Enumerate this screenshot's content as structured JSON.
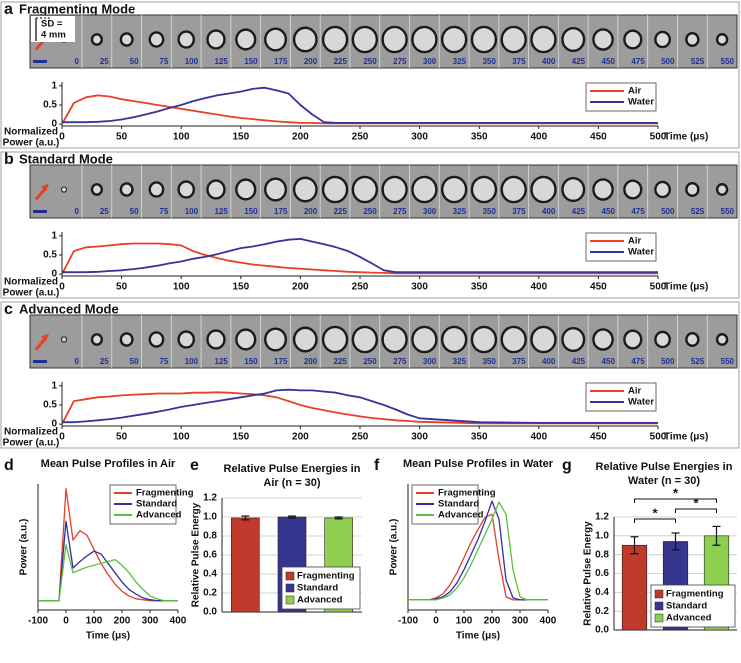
{
  "chart_data": [
    {
      "panel": "a",
      "type": "line",
      "title": "Fragmenting Mode",
      "scale_label": [
        "SD =",
        "4 mm"
      ],
      "frame_labels": [
        0,
        25,
        50,
        75,
        100,
        125,
        150,
        175,
        200,
        225,
        250,
        275,
        300,
        325,
        350,
        375,
        400,
        425,
        450,
        475,
        500,
        525,
        550
      ],
      "xlabel": "Time (μs)",
      "ylabel": [
        "Normalized",
        "Power (a.u.)"
      ],
      "legend": "upper right",
      "xlim": [
        0,
        500
      ],
      "xticks": [
        0,
        50,
        100,
        150,
        200,
        250,
        300,
        350,
        400,
        450,
        500
      ],
      "ylim": [
        -0.05,
        1.1
      ],
      "yticks": [
        0,
        0.5,
        1
      ],
      "x": [
        0,
        10,
        20,
        30,
        40,
        50,
        60,
        70,
        80,
        90,
        100,
        110,
        120,
        130,
        140,
        150,
        160,
        170,
        180,
        190,
        200,
        210,
        220,
        230,
        240,
        250,
        260,
        270,
        280,
        290,
        300,
        350,
        400,
        450,
        500
      ],
      "series": [
        {
          "name": "Air",
          "color": "#e8402b",
          "values": [
            0,
            0.55,
            0.7,
            0.75,
            0.72,
            0.65,
            0.6,
            0.55,
            0.5,
            0.45,
            0.4,
            0.35,
            0.3,
            0.25,
            0.2,
            0.16,
            0.13,
            0.1,
            0.07,
            0.05,
            0.03,
            0.03,
            0.02,
            0.02,
            0.02,
            0.02,
            0.02,
            0.02,
            0.02,
            0.02,
            0.02,
            0.02,
            0.02,
            0.02,
            0.02
          ]
        },
        {
          "name": "Water",
          "color": "#34349a",
          "values": [
            0.05,
            0.05,
            0.05,
            0.06,
            0.08,
            0.12,
            0.18,
            0.25,
            0.33,
            0.42,
            0.5,
            0.6,
            0.68,
            0.75,
            0.8,
            0.85,
            0.92,
            0.95,
            0.88,
            0.8,
            0.5,
            0.25,
            0.05,
            0.03,
            0.03,
            0.03,
            0.03,
            0.03,
            0.03,
            0.03,
            0.03,
            0.03,
            0.03,
            0.03,
            0.03
          ]
        }
      ]
    },
    {
      "panel": "b",
      "type": "line",
      "title": "Standard Mode",
      "frame_labels": [
        0,
        25,
        50,
        75,
        100,
        125,
        150,
        175,
        200,
        225,
        250,
        275,
        300,
        325,
        350,
        375,
        400,
        425,
        450,
        475,
        500,
        525,
        550
      ],
      "xlabel": "Time (μs)",
      "ylabel": [
        "Normalized",
        "Power (a.u.)"
      ],
      "legend": "upper right",
      "xlim": [
        0,
        500
      ],
      "xticks": [
        0,
        50,
        100,
        150,
        200,
        250,
        300,
        350,
        400,
        450,
        500
      ],
      "ylim": [
        -0.05,
        1.1
      ],
      "yticks": [
        0,
        0.5,
        1
      ],
      "x": [
        0,
        10,
        20,
        30,
        40,
        50,
        60,
        70,
        80,
        90,
        100,
        110,
        120,
        130,
        140,
        150,
        160,
        170,
        180,
        190,
        200,
        210,
        220,
        230,
        240,
        250,
        260,
        270,
        280,
        290,
        300,
        350,
        400,
        450,
        500
      ],
      "series": [
        {
          "name": "Air",
          "color": "#e8402b",
          "values": [
            0,
            0.6,
            0.7,
            0.72,
            0.75,
            0.78,
            0.8,
            0.8,
            0.8,
            0.78,
            0.75,
            0.6,
            0.5,
            0.42,
            0.35,
            0.3,
            0.25,
            0.22,
            0.19,
            0.16,
            0.14,
            0.12,
            0.1,
            0.08,
            0.06,
            0.05,
            0.04,
            0.03,
            0.02,
            0.02,
            0.02,
            0.02,
            0.02,
            0.02,
            0.02
          ]
        },
        {
          "name": "Water",
          "color": "#34349a",
          "values": [
            0.05,
            0.05,
            0.05,
            0.06,
            0.08,
            0.1,
            0.13,
            0.17,
            0.22,
            0.28,
            0.33,
            0.4,
            0.45,
            0.52,
            0.6,
            0.68,
            0.72,
            0.78,
            0.85,
            0.9,
            0.92,
            0.85,
            0.78,
            0.7,
            0.6,
            0.45,
            0.28,
            0.1,
            0.05,
            0.05,
            0.05,
            0.05,
            0.05,
            0.05,
            0.05
          ]
        }
      ]
    },
    {
      "panel": "c",
      "type": "line",
      "title": "Advanced Mode",
      "frame_labels": [
        0,
        25,
        50,
        75,
        100,
        125,
        150,
        175,
        200,
        225,
        250,
        275,
        300,
        325,
        350,
        375,
        400,
        425,
        450,
        475,
        500,
        525,
        550
      ],
      "xlabel": "Time (μs)",
      "ylabel": [
        "Normalized",
        "Power (a.u.)"
      ],
      "legend": "upper right",
      "xlim": [
        0,
        500
      ],
      "xticks": [
        0,
        50,
        100,
        150,
        200,
        250,
        300,
        350,
        400,
        450,
        500
      ],
      "ylim": [
        -0.05,
        1.1
      ],
      "yticks": [
        0,
        0.5,
        1
      ],
      "x": [
        0,
        10,
        20,
        30,
        40,
        50,
        60,
        70,
        80,
        90,
        100,
        110,
        120,
        130,
        140,
        150,
        160,
        170,
        180,
        190,
        200,
        210,
        220,
        230,
        240,
        250,
        260,
        270,
        280,
        290,
        300,
        350,
        400,
        450,
        500
      ],
      "series": [
        {
          "name": "Air",
          "color": "#e8402b",
          "values": [
            0,
            0.6,
            0.65,
            0.7,
            0.72,
            0.75,
            0.77,
            0.78,
            0.8,
            0.8,
            0.8,
            0.82,
            0.82,
            0.83,
            0.82,
            0.8,
            0.78,
            0.75,
            0.7,
            0.6,
            0.5,
            0.42,
            0.36,
            0.3,
            0.25,
            0.2,
            0.16,
            0.13,
            0.1,
            0.08,
            0.06,
            0.02,
            0.02,
            0.02,
            0.02
          ]
        },
        {
          "name": "Water",
          "color": "#34349a",
          "values": [
            0.05,
            0.05,
            0.07,
            0.1,
            0.13,
            0.17,
            0.22,
            0.27,
            0.32,
            0.38,
            0.45,
            0.5,
            0.55,
            0.6,
            0.65,
            0.7,
            0.75,
            0.8,
            0.88,
            0.9,
            0.88,
            0.88,
            0.85,
            0.82,
            0.75,
            0.7,
            0.6,
            0.5,
            0.38,
            0.25,
            0.15,
            0.05,
            0.03,
            0.03,
            0.03
          ]
        }
      ]
    },
    {
      "panel": "d",
      "type": "line",
      "title": "Mean Pulse Profiles in Air",
      "xlabel": "Time (μs)",
      "ylabel": "Power (a.u.)",
      "legend": "upper right",
      "xlim": [
        -100,
        400
      ],
      "xticks": [
        -100,
        0,
        100,
        200,
        300,
        400
      ],
      "ylim": [
        -0.1,
        1.25
      ],
      "x": [
        -100,
        -75,
        -50,
        -25,
        0,
        25,
        50,
        75,
        100,
        125,
        150,
        175,
        200,
        225,
        250,
        275,
        300,
        325,
        350,
        375,
        400
      ],
      "series": [
        {
          "name": "Fragmenting",
          "color": "#e0402c",
          "values": [
            0,
            0,
            0,
            0,
            1.2,
            0.65,
            0.75,
            0.7,
            0.55,
            0.4,
            0.28,
            0.18,
            0.1,
            0.05,
            0.02,
            0.01,
            0,
            0,
            0,
            0,
            0
          ]
        },
        {
          "name": "Standard",
          "color": "#3030a0",
          "values": [
            0,
            0,
            0,
            0,
            0.85,
            0.35,
            0.42,
            0.48,
            0.53,
            0.5,
            0.4,
            0.3,
            0.2,
            0.12,
            0.07,
            0.03,
            0.01,
            0,
            0,
            0,
            0
          ]
        },
        {
          "name": "Advanced",
          "color": "#5cc040",
          "values": [
            0,
            0,
            0,
            0,
            0.6,
            0.3,
            0.33,
            0.36,
            0.38,
            0.4,
            0.42,
            0.44,
            0.38,
            0.3,
            0.2,
            0.12,
            0.05,
            0.02,
            0,
            0,
            0
          ]
        }
      ]
    },
    {
      "panel": "e",
      "type": "bar",
      "title": [
        "Relative Pulse Energies in",
        "Air (n = 30)"
      ],
      "ylabel": "Relative Pulse Energy",
      "legend": "lower right",
      "grid": true,
      "ylim": [
        0,
        1.2
      ],
      "yticks": [
        {
          "value": 0,
          "label": "0.0"
        },
        0.2,
        0.4,
        0.6,
        0.8,
        {
          "value": 1,
          "label": "1.0"
        },
        1.2
      ],
      "series": [
        {
          "name": "Fragmenting",
          "color": "#bf3a2a",
          "values": [
            0.99
          ],
          "errors": [
            0.02
          ]
        },
        {
          "name": "Standard",
          "color": "#36368f",
          "values": [
            1.0
          ],
          "errors": [
            0.01
          ]
        },
        {
          "name": "Advanced",
          "color": "#8fcf50",
          "values": [
            0.99
          ],
          "errors": [
            0.01
          ]
        }
      ]
    },
    {
      "panel": "f",
      "type": "line",
      "title": "Mean Pulse Profiles in Water",
      "xlabel": "Time (μs)",
      "ylabel": "Power (a.u.)",
      "legend": "upper left",
      "xlim": [
        -100,
        400
      ],
      "xticks": [
        -100,
        0,
        100,
        200,
        300,
        400
      ],
      "ylim": [
        -0.1,
        1.15
      ],
      "x": [
        -100,
        -75,
        -50,
        -25,
        0,
        25,
        50,
        75,
        100,
        125,
        150,
        175,
        200,
        225,
        250,
        275,
        300,
        325,
        350,
        375,
        400
      ],
      "series": [
        {
          "name": "Fragmenting",
          "color": "#e0402c",
          "values": [
            0,
            0,
            0,
            0,
            0.02,
            0.06,
            0.15,
            0.27,
            0.42,
            0.57,
            0.7,
            0.82,
            0.85,
            0.4,
            0.03,
            0,
            0,
            0,
            0,
            0,
            0
          ]
        },
        {
          "name": "Standard",
          "color": "#3030a0",
          "values": [
            0,
            0,
            0,
            0,
            0.01,
            0.03,
            0.08,
            0.17,
            0.3,
            0.45,
            0.6,
            0.78,
            0.98,
            0.8,
            0.2,
            0.02,
            0,
            0,
            0,
            0,
            0
          ]
        },
        {
          "name": "Advanced",
          "color": "#5cc040",
          "values": [
            0,
            0,
            0,
            0,
            0,
            0.02,
            0.05,
            0.12,
            0.22,
            0.35,
            0.5,
            0.65,
            0.8,
            0.97,
            0.85,
            0.3,
            0.03,
            0,
            0,
            0,
            0
          ]
        }
      ]
    },
    {
      "panel": "g",
      "type": "bar",
      "title": [
        "Relative Pulse Energies in",
        "Water (n = 30)"
      ],
      "ylabel": "Relative Pulse Energy",
      "legend": "lower right",
      "grid": true,
      "ylim": [
        0,
        1.2
      ],
      "yticks": [
        {
          "value": 0,
          "label": "0.0"
        },
        0.2,
        0.4,
        0.6,
        0.8,
        {
          "value": 1,
          "label": "1.0"
        },
        1.2
      ],
      "annotations": [
        "*",
        "*",
        "*"
      ],
      "series": [
        {
          "name": "Fragmenting",
          "color": "#bf3a2a",
          "values": [
            0.9
          ],
          "errors": [
            0.09
          ]
        },
        {
          "name": "Standard",
          "color": "#36368f",
          "values": [
            0.94
          ],
          "errors": [
            0.09
          ]
        },
        {
          "name": "Advanced",
          "color": "#8fcf50",
          "values": [
            1.0
          ],
          "errors": [
            0.1
          ]
        }
      ]
    }
  ]
}
